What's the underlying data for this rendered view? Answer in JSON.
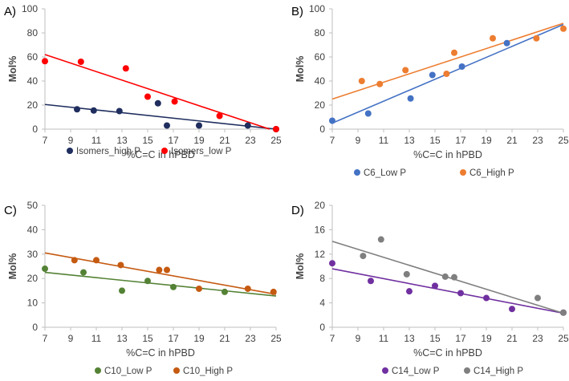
{
  "chart_data": [
    {
      "type": "scatter",
      "panel_label": "A)",
      "xlabel": "%C=C in hPBD",
      "ylabel": "Mol%",
      "xlim": [
        7,
        25
      ],
      "ylim": [
        0,
        100
      ],
      "xticks": [
        7,
        9,
        11,
        13,
        15,
        17,
        19,
        21,
        23,
        25
      ],
      "yticks": [
        0,
        20,
        40,
        60,
        80,
        100
      ],
      "legend_position": "bottom",
      "series": [
        {
          "name": "Isomers_high P",
          "color": "#1f2e5e",
          "x": [
            9.5,
            10.8,
            12.8,
            15.8,
            16.5,
            19,
            22.8,
            25
          ],
          "y": [
            16.5,
            15.5,
            15,
            21.5,
            3,
            3,
            3,
            0
          ],
          "trend": [
            [
              7,
              20.5
            ],
            [
              25,
              0
            ]
          ]
        },
        {
          "name": "Isomers_low P",
          "color": "#ff0000",
          "x": [
            7,
            9.8,
            13.3,
            15,
            17.1,
            20.6,
            25
          ],
          "y": [
            56.5,
            56,
            50.5,
            27,
            23,
            11,
            0
          ],
          "trend": [
            [
              7,
              62
            ],
            [
              24.5,
              0
            ]
          ]
        }
      ]
    },
    {
      "type": "scatter",
      "panel_label": "B)",
      "xlabel": "%C=C in hPBD",
      "ylabel": "Mol%",
      "xlim": [
        7,
        25
      ],
      "ylim": [
        0,
        100
      ],
      "xticks": [
        7,
        9,
        11,
        13,
        15,
        17,
        19,
        21,
        23,
        25
      ],
      "yticks": [
        0,
        20,
        40,
        60,
        80,
        100
      ],
      "legend_position": "bottom",
      "series": [
        {
          "name": "C6_Low P",
          "color": "#4472c4",
          "x": [
            7,
            9.8,
            13.1,
            14.8,
            17.1,
            20.6
          ],
          "y": [
            7,
            13,
            25.5,
            45,
            52,
            71.5
          ],
          "trend": [
            [
              7,
              5
            ],
            [
              25,
              87
            ]
          ]
        },
        {
          "name": "C6_High P",
          "color": "#ed7d31",
          "x": [
            9.3,
            10.7,
            12.7,
            15.9,
            16.5,
            19.5,
            22.9,
            25
          ],
          "y": [
            40,
            37.5,
            49,
            46,
            63.5,
            75.5,
            75.5,
            83.5
          ],
          "trend": [
            [
              7,
              25
            ],
            [
              25,
              88
            ]
          ]
        }
      ]
    },
    {
      "type": "scatter",
      "panel_label": "C)",
      "xlabel": "%C=C in hPBD",
      "ylabel": "Mol%",
      "xlim": [
        7,
        25
      ],
      "ylim": [
        0,
        50
      ],
      "xticks": [
        7,
        9,
        11,
        13,
        15,
        17,
        19,
        21,
        23,
        25
      ],
      "yticks": [
        0,
        10,
        20,
        30,
        40,
        50
      ],
      "legend_position": "bottom",
      "series": [
        {
          "name": "C10_Low P",
          "color": "#548235",
          "x": [
            7,
            10,
            13,
            15,
            17,
            21
          ],
          "y": [
            24,
            22.5,
            15,
            19,
            16.5,
            14.5
          ],
          "trend": [
            [
              7,
              22.5
            ],
            [
              25,
              12.8
            ]
          ]
        },
        {
          "name": "C10_High P",
          "color": "#c55a11",
          "x": [
            9.3,
            11,
            12.9,
            15.9,
            16.5,
            19,
            22.8,
            24.8
          ],
          "y": [
            27.5,
            27.5,
            25.5,
            23.5,
            23.5,
            15.8,
            15.8,
            14.5
          ],
          "trend": [
            [
              7,
              30.5
            ],
            [
              25,
              13.5
            ]
          ]
        }
      ]
    },
    {
      "type": "scatter",
      "panel_label": "D)",
      "xlabel": "%C=C in hPBD",
      "ylabel": "Mol%",
      "xlim": [
        7,
        25
      ],
      "ylim": [
        0,
        20
      ],
      "xticks": [
        7,
        9,
        11,
        13,
        15,
        17,
        19,
        21,
        23,
        25
      ],
      "yticks": [
        0,
        4,
        8,
        12,
        16,
        20
      ],
      "legend_position": "bottom",
      "series": [
        {
          "name": "C14_Low P",
          "color": "#7030a0",
          "x": [
            7,
            10,
            13,
            15,
            17,
            19,
            21,
            25
          ],
          "y": [
            10.5,
            7.6,
            5.9,
            6.8,
            5.6,
            4.8,
            3,
            2.4
          ],
          "trend": [
            [
              7,
              9.6
            ],
            [
              25,
              2.3
            ]
          ]
        },
        {
          "name": "C14_High P",
          "color": "#7f7f7f",
          "x": [
            9.4,
            10.8,
            12.8,
            15.8,
            16.5,
            23,
            25
          ],
          "y": [
            11.7,
            14.4,
            8.7,
            8.3,
            8.2,
            4.8,
            2.4
          ],
          "trend": [
            [
              7,
              14.1
            ],
            [
              25,
              2.3
            ]
          ]
        }
      ]
    }
  ]
}
